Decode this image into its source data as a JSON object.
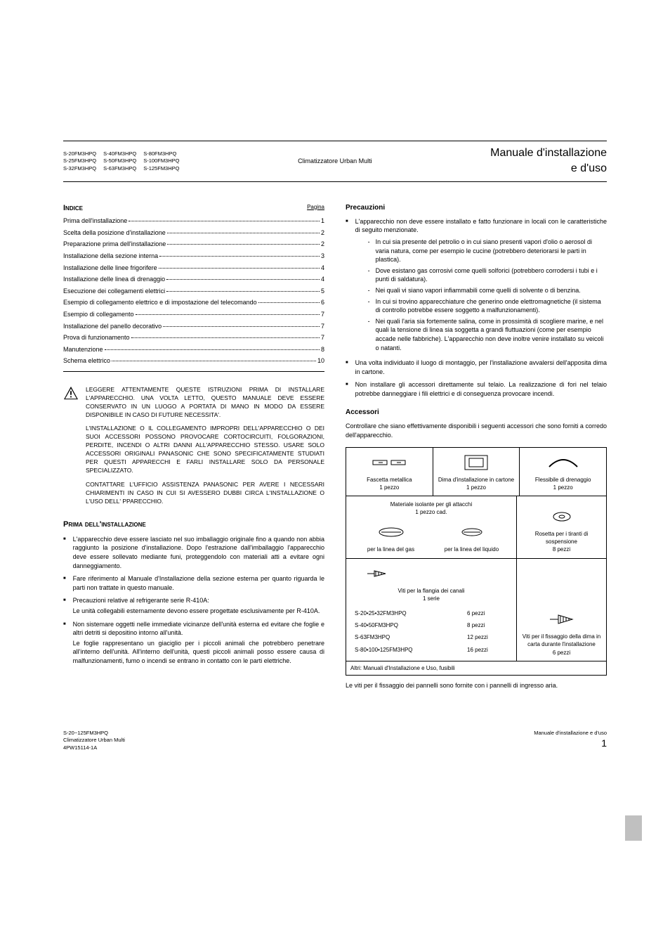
{
  "header": {
    "models": [
      "S-20FM3HPQ",
      "S-40FM3HPQ",
      "S-80FM3HPQ",
      "S-25FM3HPQ",
      "S-50FM3HPQ",
      "S-100FM3HPQ",
      "S-32FM3HPQ",
      "S-63FM3HPQ",
      "S-125FM3HPQ"
    ],
    "center": "Climatizzatore Urban Multi",
    "right1": "Manuale d'installazione",
    "right2": "e d'uso"
  },
  "toc": {
    "heading": "Indice",
    "page_label": "Pagina",
    "items": [
      {
        "title": "Prima dell'installazione",
        "page": "1"
      },
      {
        "title": "Scelta della posizione d'installazione",
        "page": "2"
      },
      {
        "title": "Preparazione prima dell'installazione",
        "page": "2"
      },
      {
        "title": "Installazione della sezione interna",
        "page": "3"
      },
      {
        "title": "Installazione delle linee frigorifere",
        "page": "4"
      },
      {
        "title": "Installazione delle linea di drenaggio",
        "page": "4"
      },
      {
        "title": "Esecuzione dei collegamenti elettrici",
        "page": "5"
      },
      {
        "title": "Esempio di collegamento elettrico e di impostazione del telecomando",
        "page": "6"
      },
      {
        "title": "Esempio di collegamento",
        "page": "7"
      },
      {
        "title": "Installazione del panello decorativo",
        "page": "7"
      },
      {
        "title": "Prova di funzionamento",
        "page": "7"
      },
      {
        "title": "Manutenzione",
        "page": "8"
      },
      {
        "title": "Schema elettrico",
        "page": "10"
      }
    ]
  },
  "warning": {
    "p1": "LEGGERE ATTENTAMENTE QUESTE ISTRUZIONI PRIMA DI INSTALLARE L'APPARECCHIO. UNA VOLTA LETTO, QUESTO MANUALE DEVE ESSERE CONSERVATO IN UN LUOGO A PORTATA DI MANO IN MODO DA ESSERE DISPONIBILE IN CASO DI FUTURE NECESSITA'.",
    "p2": "L'INSTALLAZIONE O IL COLLEGAMENTO IMPROPRI DELL'APPARECCHIO O DEI SUOI ACCESSORI POSSONO PROVOCARE CORTOCIRCUITI, FOLGORAZIONI, PERDITE, INCENDI O ALTRI DANNI ALL'APPARECCHIO STESSO. USARE SOLO ACCESSORI ORIGINALI PANASONIC CHE SONO SPECIFICATAMENTE STUDIATI PER QUESTI APPARECCHI E FARLI INSTALLARE SOLO DA PERSONALE SPECIALIZZATO.",
    "p3": "CONTATTARE L'UFFICIO ASSISTENZA PANASONIC PER AVERE I NECESSARI CHIARIMENTI IN CASO IN CUI SI AVESSERO DUBBI CIRCA L'INSTALLAZIONE O L'USO DELL' PPARECCHIO."
  },
  "prima": {
    "heading": "Prima dell'installazione",
    "bullets": [
      "L'apparecchio deve essere lasciato nel suo imballaggio originale fino a quando non abbia raggiunto la posizione d'installazione. Dopo l'estrazione dall'imballaggio l'apparecchio deve essere sollevato mediante funi, proteggendolo con materiali atti a evitare ogni danneggiamento.",
      "Fare riferimento al Manuale d'Installazione della sezione esterna per quanto riguarda le parti non trattate in questo manuale.",
      "Precauzioni relative al refrigerante serie R-410A:",
      "Non sistemare oggetti nelle immediate vicinanze dell'unità esterna ed evitare che foglie e altri detriti si depositino intorno all'unità."
    ],
    "sub3": "Le unità collegabili esternamente devono essere progettate esclusivamente per R-410A.",
    "sub4": "Le foglie rappresentano un giaciglio per i piccoli animali che potrebbero penetrare all'interno dell'unità. All'interno dell'unità, questi piccoli animali posso essere causa di malfunzionamenti, fumo o incendi se entrano in contatto con le parti elettriche."
  },
  "precauzioni": {
    "heading": "Precauzioni",
    "b1": "L'apparecchio non deve essere installato e fatto funzionare in locali con le caratteristiche di seguito menzionate.",
    "sub": [
      "In cui sia presente del petrolio o in cui siano presenti vapori d'olio o aerosol di varia natura, come per esempio le cucine (potrebbero deteriorarsi le parti in plastica).",
      "Dove esistano gas corrosivi come quelli solforici (potrebbero corrodersi i tubi e i punti di saldatura).",
      "Nei quali vi siano vapori infiammabili come quelli di solvente o di benzina.",
      "In cui si trovino apparecchiature che generino onde elettromagnetiche (il sistema di controllo potrebbe essere soggetto a malfunzionamenti).",
      "Nei quali l'aria sia fortemente salina, come in prossimità di scogliere marine, e nel quali la tensione di linea sia soggetta a grandi fluttuazioni (come per esempio accade nelle fabbriche). L'apparecchio non deve inoltre venire installato su veicoli o natanti."
    ],
    "b2": "Una volta individuato il luogo di montaggio, per l'installazione avvalersi dell'apposita dima in cartone.",
    "b3": "Non installare gli accessori direttamente sul telaio. La realizzazione di fori nel telaio potrebbe danneggiare i fili elettrici e di conseguenza provocare incendi."
  },
  "accessori": {
    "heading": "Accessori",
    "intro": "Controllare che siano effettivamente disponibili i seguenti accessori che sono forniti a corredo dell'apparecchio.",
    "r1c1_t": "Fascetta metallica",
    "r1c1_q": "1 pezzo",
    "r1c2_t": "Dima d'installazione in cartone",
    "r1c2_q": "1 pezzo",
    "r1c3_t": "Flessibile di drenaggio",
    "r1c3_q": "1 pezzo",
    "r2c12_t": "Materiale isolante per gli attacchi",
    "r2c12_q": "1 pezzo cad.",
    "r2c3_t": "Rosetta per i tiranti di sospensione",
    "r2c3_q": "8 pezzi",
    "r2_sub_l": "per la linea del gas",
    "r2_sub_r": "per la linea del liquido",
    "r3c12_t": "Viti per la flangia dei canali",
    "r3c12_q": "1 serie",
    "r3c3_t": "Viti per il fissaggio della dima in carta durante l'installazione",
    "r3c3_q": "6 pezzi",
    "qty_rows": [
      [
        "S-20•25•32FM3HPQ",
        "6 pezzi"
      ],
      [
        "S-40•50FM3HPQ",
        "8 pezzi"
      ],
      [
        "S-63FM3HPQ",
        "12 pezzi"
      ],
      [
        "S-80•100•125FM3HPQ",
        "16 pezzi"
      ]
    ],
    "last_row": "Altri: Manuali d'Installazione e Uso, fusibili",
    "footnote": "Le viti per il fissaggio dei pannelli sono fornite con i pannelli di ingresso aria."
  },
  "footer": {
    "l1": "S-20~125FM3HPQ",
    "l2": "Climatizzatore Urban Multi",
    "l3": "4PW15114-1A",
    "r1": "Manuale d'installazione e d'uso",
    "pg": "1"
  },
  "colors": {
    "bg": "#ffffff",
    "text": "#000000",
    "tab": "#c0c0c0"
  }
}
